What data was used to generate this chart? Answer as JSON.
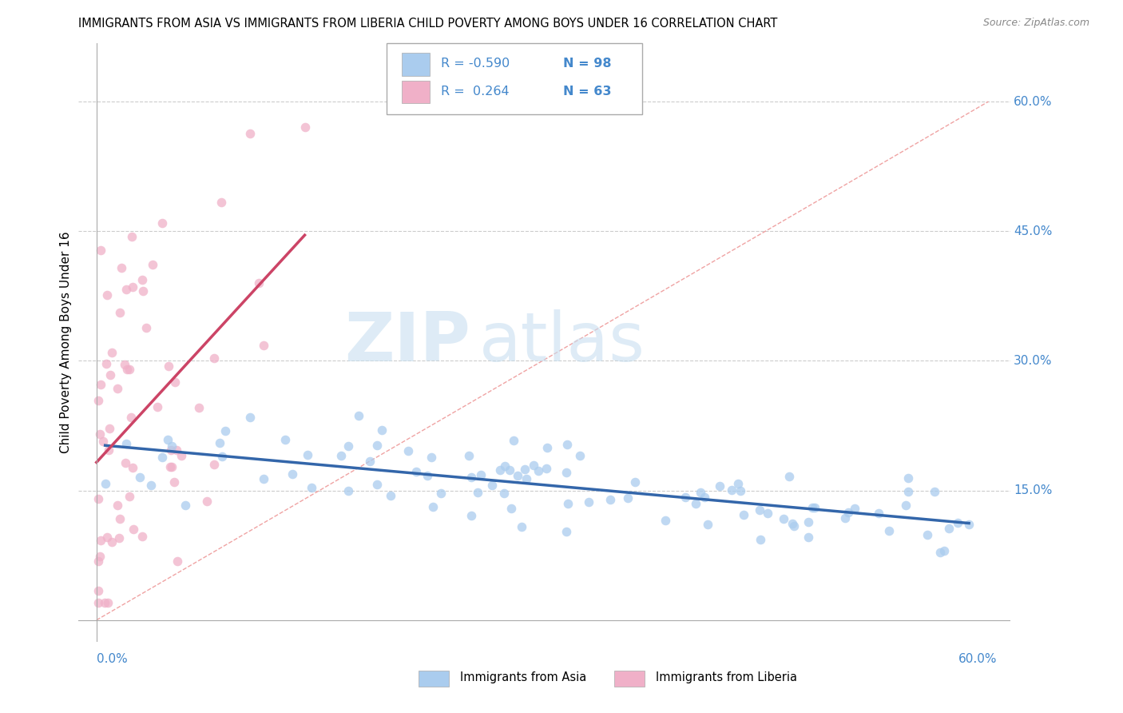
{
  "title": "IMMIGRANTS FROM ASIA VS IMMIGRANTS FROM LIBERIA CHILD POVERTY AMONG BOYS UNDER 16 CORRELATION CHART",
  "source": "Source: ZipAtlas.com",
  "ylabel": "Child Poverty Among Boys Under 16",
  "xlim": [
    0.0,
    0.6
  ],
  "ylim": [
    0.0,
    0.65
  ],
  "asia_R": -0.59,
  "asia_N": 98,
  "liberia_R": 0.264,
  "liberia_N": 63,
  "asia_color": "#aaccee",
  "liberia_color": "#f0b0c8",
  "asia_line_color": "#3366aa",
  "liberia_line_color": "#cc4466",
  "diag_line_color": "#ee9999",
  "right_tick_color": "#4488cc",
  "legend_R_color": "#cc2244",
  "background_color": "#ffffff",
  "watermark_zip": "ZIP",
  "watermark_atlas": "atlas",
  "yticks": [
    0.15,
    0.3,
    0.45,
    0.6
  ],
  "ytick_labels": [
    "15.0%",
    "30.0%",
    "45.0%",
    "60.0%"
  ]
}
